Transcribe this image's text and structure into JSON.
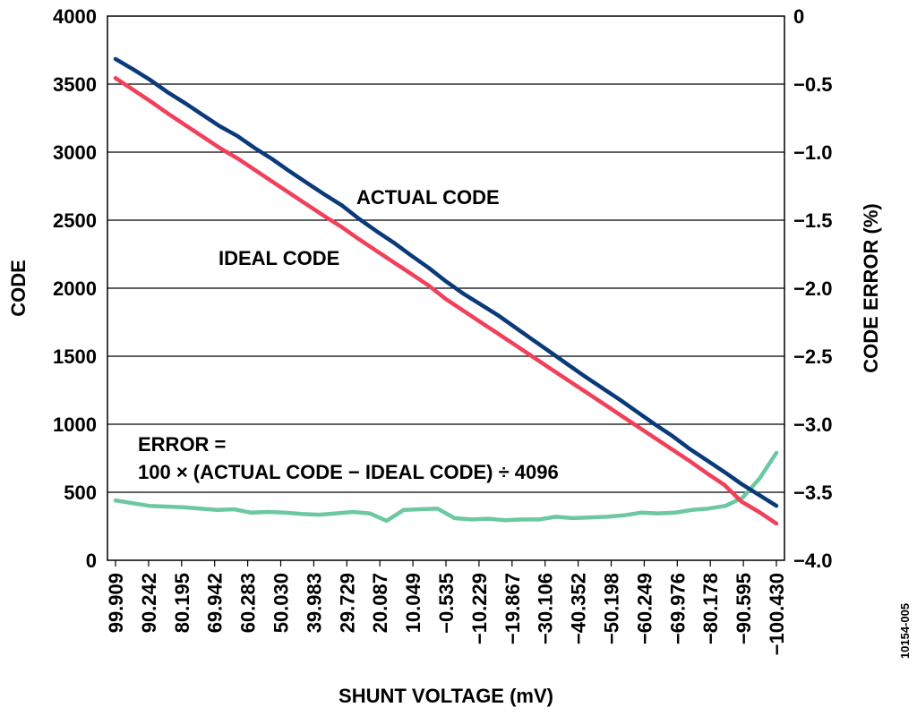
{
  "chart_data": {
    "type": "line",
    "xlabel": "SHUNT VOLTAGE (mV)",
    "ylabel": "CODE",
    "y2label": "CODE ERROR (%)",
    "ylim": [
      0,
      4000
    ],
    "y2lim": [
      -4.0,
      0
    ],
    "yticks": [
      "0",
      "500",
      "1000",
      "1500",
      "2000",
      "2500",
      "3000",
      "3500",
      "4000"
    ],
    "y2ticks": [
      "0",
      "−0.5",
      "−1.0",
      "−1.5",
      "−2.0",
      "−2.5",
      "−3.0",
      "−3.5",
      "−4.0"
    ],
    "xtick_labels": [
      "99.909",
      "90.242",
      "80.195",
      "69.942",
      "60.283",
      "50.030",
      "39.983",
      "29.729",
      "20.087",
      "10.049",
      "−0.535",
      "−10.229",
      "−19.867",
      "−30.106",
      "−40.352",
      "−50.198",
      "−60.249",
      "−69.976",
      "−80.178",
      "−90.595",
      "−100.430"
    ],
    "grid": true,
    "figure_id": "10154-005",
    "annotations": {
      "actual": "ACTUAL CODE",
      "ideal": "IDEAL CODE",
      "error_line1": "ERROR =",
      "error_line2": "100 × (ACTUAL CODE − IDEAL CODE) ÷ 4096"
    },
    "series": [
      {
        "key": "actual",
        "axis": "left",
        "color": "#0a3a7a",
        "values": [
          3685,
          3610,
          3530,
          3440,
          3360,
          3275,
          3190,
          3120,
          3030,
          2950,
          2860,
          2775,
          2690,
          2610,
          2510,
          2420,
          2335,
          2240,
          2150,
          2050,
          1960,
          1880,
          1800,
          1710,
          1620,
          1530,
          1440,
          1350,
          1265,
          1180,
          1090,
          1000,
          915,
          820,
          735,
          650,
          560,
          480,
          400
        ]
      },
      {
        "key": "ideal",
        "axis": "left",
        "color": "#f0405a",
        "values": [
          3545,
          3460,
          3375,
          3285,
          3200,
          3115,
          3030,
          2955,
          2870,
          2785,
          2700,
          2615,
          2530,
          2450,
          2360,
          2275,
          2190,
          2105,
          2020,
          1920,
          1835,
          1750,
          1665,
          1580,
          1495,
          1410,
          1325,
          1240,
          1155,
          1070,
          985,
          900,
          815,
          730,
          640,
          555,
          430,
          355,
          270
        ]
      },
      {
        "key": "error",
        "axis": "right",
        "color": "#6cc8a0",
        "values": [
          -3.56,
          -3.58,
          -3.6,
          -3.605,
          -3.61,
          -3.62,
          -3.63,
          -3.625,
          -3.65,
          -3.645,
          -3.65,
          -3.66,
          -3.665,
          -3.655,
          -3.645,
          -3.655,
          -3.71,
          -3.63,
          -3.625,
          -3.62,
          -3.69,
          -3.7,
          -3.695,
          -3.705,
          -3.7,
          -3.7,
          -3.68,
          -3.69,
          -3.685,
          -3.68,
          -3.67,
          -3.65,
          -3.655,
          -3.65,
          -3.63,
          -3.62,
          -3.6,
          -3.54,
          -3.4,
          -3.21
        ]
      }
    ]
  }
}
